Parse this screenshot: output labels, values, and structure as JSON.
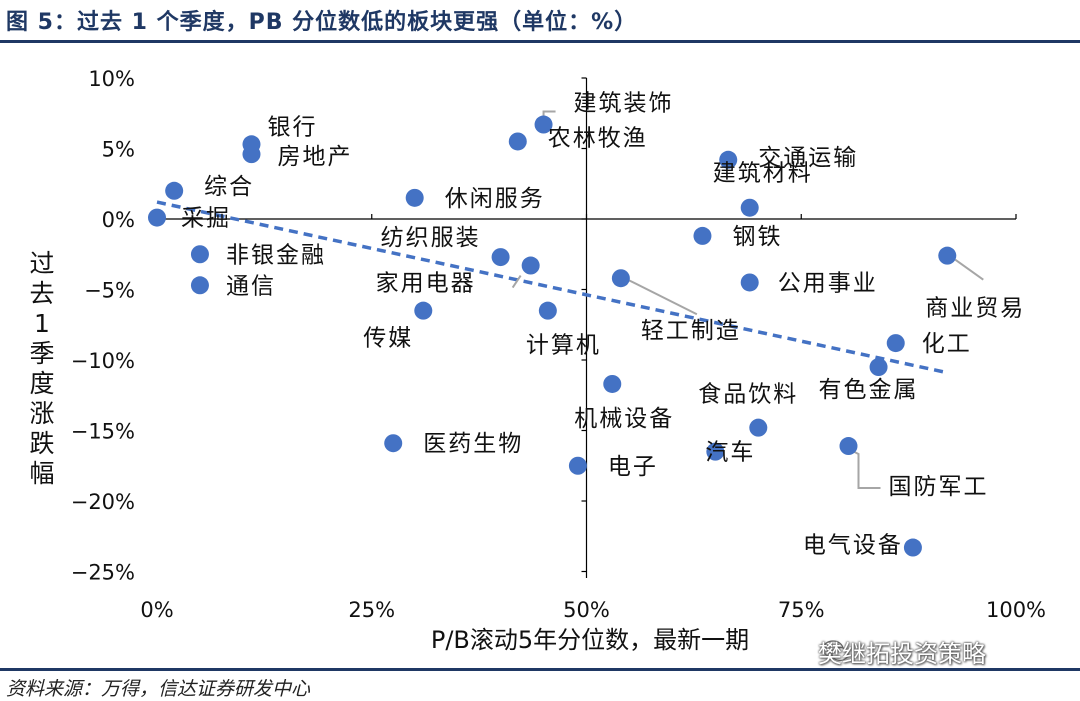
{
  "header": {
    "title": "图 5：过去 1 个季度，PB 分位数低的板块更强（单位：%）"
  },
  "footer": {
    "source": "资料来源：万得，信达证券研发中心",
    "watermark": "樊继拓投资策略"
  },
  "colors": {
    "point": "#4472c4",
    "trend": "#4472c4",
    "rule": "#1f3864",
    "axis": "#000000"
  },
  "chart_data": {
    "type": "scatter",
    "xlabel": "P/B滚动5年分位数，最新一期",
    "ylabel": "过去1季度涨跌幅",
    "x_ticks": [
      "0%",
      "25%",
      "50%",
      "75%",
      "100%"
    ],
    "y_ticks": [
      "10%",
      "5%",
      "0%",
      "−5%",
      "−10%",
      "−15%",
      "−20%",
      "−25%"
    ],
    "xlim": [
      0,
      100
    ],
    "ylim": [
      -25,
      10
    ],
    "trendline": {
      "style": "dashed",
      "from": [
        0,
        1.2
      ],
      "to": [
        92,
        -10.9
      ]
    },
    "points": [
      {
        "label": "银行",
        "x": 11,
        "y": 5.3
      },
      {
        "label": "房地产",
        "x": 11,
        "y": 4.6
      },
      {
        "label": "综合",
        "x": 2,
        "y": 2.0
      },
      {
        "label": "采掘",
        "x": 0,
        "y": 0.1
      },
      {
        "label": "非银金融",
        "x": 5,
        "y": -2.5
      },
      {
        "label": "通信",
        "x": 5,
        "y": -4.7
      },
      {
        "label": "休闲服务",
        "x": 30,
        "y": 1.5
      },
      {
        "label": "建筑装饰",
        "x": 45,
        "y": 6.7
      },
      {
        "label": "农林牧渔",
        "x": 42,
        "y": 5.5
      },
      {
        "label": "纺织服装",
        "x": 40,
        "y": -2.7
      },
      {
        "label": "家用电器",
        "x": 43.5,
        "y": -3.3
      },
      {
        "label": "传媒",
        "x": 31,
        "y": -6.5
      },
      {
        "label": "计算机",
        "x": 45.5,
        "y": -6.5
      },
      {
        "label": "轻工制造",
        "x": 54,
        "y": -4.2
      },
      {
        "label": "交通运输",
        "x": 66.5,
        "y": 4.2
      },
      {
        "label": "建筑材料",
        "x": 69,
        "y": 0.8
      },
      {
        "label": "钢铁",
        "x": 63.5,
        "y": -1.2
      },
      {
        "label": "公用事业",
        "x": 69,
        "y": -4.5
      },
      {
        "label": "商业贸易",
        "x": 92,
        "y": -2.6
      },
      {
        "label": "化工",
        "x": 86,
        "y": -8.8
      },
      {
        "label": "有色金属",
        "x": 84,
        "y": -10.5
      },
      {
        "label": "机械设备",
        "x": 53,
        "y": -11.7
      },
      {
        "label": "食品饮料",
        "x": 70,
        "y": -14.8
      },
      {
        "label": "医药生物",
        "x": 27.5,
        "y": -15.9
      },
      {
        "label": "电子",
        "x": 49,
        "y": -17.5
      },
      {
        "label": "汽车",
        "x": 65,
        "y": -16.5
      },
      {
        "label": "国防军工",
        "x": 80.5,
        "y": -16.1
      },
      {
        "label": "电气设备",
        "x": 88,
        "y": -23.3
      }
    ]
  }
}
